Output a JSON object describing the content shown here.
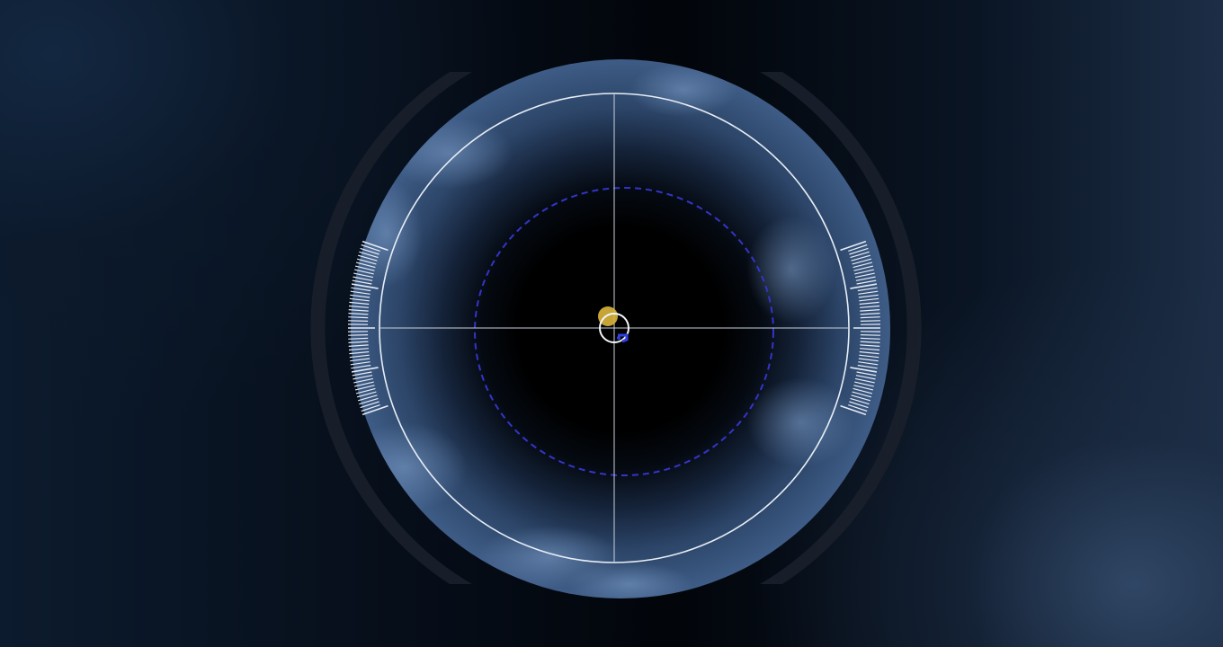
{
  "scope": {
    "reticle_icon": "crosshair-reticle-icon",
    "sun_icon": "yellow-disc-icon",
    "marker_icon": "blue-marker-icon",
    "colors": {
      "sky_blue": "#3f5f8a",
      "core": "#000000",
      "ring_white": "#e8eef6",
      "dashed_ring": "#3434c8",
      "sun_yellow": "#d7b23a",
      "marker_blue": "#2f3fe0",
      "bracket": "#1c2330",
      "tick_white": "#e6ecf4"
    }
  }
}
